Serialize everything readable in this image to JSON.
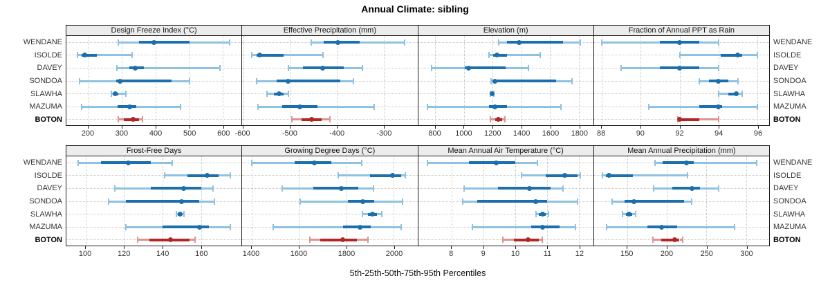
{
  "title": "Annual Climate: sibling",
  "xlabel": "5th-25th-50th-75th-95th Percentiles",
  "stations": [
    "WENDANE",
    "ISOLDE",
    "DAVEY",
    "SONDOA",
    "SLAWHA",
    "MAZUMA",
    "BOTON"
  ],
  "highlight_station": "BOTON",
  "colors": {
    "series_dark": "#1b6fad",
    "series_light": "#8fc1e0",
    "highlight_dark": "#b22623",
    "highlight_light": "#dc9490",
    "strip_bg": "#ececec",
    "panel_border": "#1a1a1a",
    "grid": "#c6c6c6"
  },
  "chart_data": {
    "type": "percentile-whisker-trellis",
    "layout": "2x4",
    "title": "Annual Climate: sibling",
    "xlabel": "5th-25th-50th-75th-95th Percentiles",
    "percentile_labels": [
      "5th",
      "25th",
      "50th",
      "75th",
      "95th"
    ],
    "grid": "dotted",
    "panels": [
      {
        "slug": "design-freeze-index",
        "title": "Design Freeze Index (°C)",
        "ticks": [
          200,
          300,
          400,
          500,
          600
        ],
        "xlim": [
          135,
          655
        ],
        "values": {
          "WENDANE": [
            290,
            350,
            394,
            500,
            620
          ],
          "ISOLDE": [
            168,
            180,
            190,
            225,
            330
          ],
          "DAVEY": [
            285,
            322,
            340,
            365,
            590
          ],
          "SONDOA": [
            175,
            282,
            295,
            448,
            500
          ],
          "SLAWHA": [
            268,
            274,
            280,
            288,
            312
          ],
          "MAZUMA": [
            180,
            286,
            322,
            343,
            474
          ],
          "BOTON": [
            290,
            305,
            333,
            350,
            361
          ]
        }
      },
      {
        "slug": "effective-precipitation",
        "title": "Effective Precipitation (mm)",
        "ticks": [
          -600,
          -500,
          -400,
          -300
        ],
        "xlim": [
          -602,
          -228
        ],
        "values": {
          "WENDANE": [
            -455,
            -428,
            -398,
            -352,
            -255
          ],
          "ISOLDE": [
            -582,
            -572,
            -564,
            -514,
            -430
          ],
          "DAVEY": [
            -504,
            -472,
            -430,
            -385,
            -345
          ],
          "SONDOA": [
            -571,
            -528,
            -504,
            -393,
            -365
          ],
          "SLAWHA": [
            -549,
            -535,
            -524,
            -514,
            -504
          ],
          "MAZUMA": [
            -568,
            -516,
            -479,
            -442,
            -320
          ],
          "BOTON": [
            -496,
            -475,
            -454,
            -433,
            -415
          ]
        }
      },
      {
        "slug": "elevation",
        "title": "Elevation (m)",
        "ticks": [
          800,
          1000,
          1200,
          1400,
          1600,
          1800
        ],
        "xlim": [
          680,
          1900
        ],
        "values": {
          "WENDANE": [
            1240,
            1300,
            1385,
            1690,
            1810
          ],
          "ISOLDE": [
            1175,
            1205,
            1230,
            1300,
            1530
          ],
          "DAVEY": [
            775,
            1005,
            1030,
            1290,
            1450
          ],
          "SONDOA": [
            1187,
            1200,
            1215,
            1640,
            1750
          ],
          "SLAWHA": [
            1185,
            1190,
            1196,
            1202,
            1208
          ],
          "MAZUMA": [
            745,
            1175,
            1215,
            1300,
            1673
          ],
          "BOTON": [
            1185,
            1215,
            1240,
            1265,
            1285
          ]
        }
      },
      {
        "slug": "fraction-annual-ppt-as-rain",
        "title": "Fraction of Annual PPT as Rain",
        "ticks": [
          88,
          90,
          92,
          94,
          96
        ],
        "xlim": [
          87.6,
          96.6
        ],
        "values": {
          "WENDANE": [
            88,
            91,
            92,
            93,
            94
          ],
          "ISOLDE": [
            92,
            94.1,
            95,
            95.2,
            96
          ],
          "DAVEY": [
            89,
            91,
            92,
            93,
            94
          ],
          "SONDOA": [
            93,
            93.5,
            94,
            94.5,
            95
          ],
          "SLAWHA": [
            94,
            94.5,
            94.9,
            95,
            95.2
          ],
          "MAZUMA": [
            90.4,
            93,
            94,
            94.2,
            96
          ],
          "BOTON": [
            91.9,
            92,
            92,
            93,
            94
          ]
        }
      },
      {
        "slug": "frost-free-days",
        "title": "Frost-Free Days",
        "ticks": [
          100,
          120,
          140,
          160
        ],
        "xlim": [
          90,
          181
        ],
        "values": {
          "WENDANE": [
            96,
            108,
            122,
            134,
            145
          ],
          "ISOLDE": [
            141,
            153,
            163,
            169,
            175
          ],
          "DAVEY": [
            115,
            134,
            151,
            160,
            166
          ],
          "SONDOA": [
            112,
            121,
            150,
            159,
            167
          ],
          "SLAWHA": [
            147,
            148,
            149,
            150,
            151
          ],
          "MAZUMA": [
            121,
            140,
            159,
            164,
            175
          ],
          "BOTON": [
            127,
            133,
            144,
            154,
            157
          ]
        }
      },
      {
        "slug": "growing-degree-days",
        "title": "Growing Degree Days (°C)",
        "ticks": [
          1400,
          1600,
          1800,
          2000
        ],
        "xlim": [
          1360,
          2100
        ],
        "values": {
          "WENDANE": [
            1400,
            1580,
            1665,
            1735,
            1865
          ],
          "ISOLDE": [
            1765,
            1900,
            1995,
            2030,
            2050
          ],
          "DAVEY": [
            1530,
            1660,
            1780,
            1850,
            1913
          ],
          "SONDOA": [
            1605,
            1805,
            1870,
            1916,
            2038
          ],
          "SLAWHA": [
            1868,
            1890,
            1910,
            1930,
            1950
          ],
          "MAZUMA": [
            1490,
            1787,
            1858,
            1902,
            2030
          ],
          "BOTON": [
            1645,
            1690,
            1785,
            1845,
            1890
          ]
        }
      },
      {
        "slug": "mean-annual-air-temperature",
        "title": "Mean Annual Air Temperature (°C)",
        "ticks": [
          8,
          9,
          10,
          11,
          12
        ],
        "xlim": [
          6.95,
          12.45
        ],
        "values": {
          "WENDANE": [
            7.25,
            8.55,
            9.4,
            10.0,
            10.7
          ],
          "ISOLDE": [
            10.2,
            10.95,
            11.55,
            11.95,
            12.05
          ],
          "DAVEY": [
            8.4,
            9.45,
            10.45,
            11.1,
            11.5
          ],
          "SONDOA": [
            8.35,
            8.8,
            10.65,
            11.0,
            11.95
          ],
          "SLAWHA": [
            10.65,
            10.75,
            10.85,
            10.95,
            11.05
          ],
          "MAZUMA": [
            8.65,
            10.5,
            10.85,
            11.4,
            11.9
          ],
          "BOTON": [
            9.6,
            9.95,
            10.4,
            10.75,
            10.85
          ]
        }
      },
      {
        "slug": "mean-annual-precipitation",
        "title": "Mean Annual Precipitation (mm)",
        "ticks": [
          150,
          200,
          250,
          300
        ],
        "xlim": [
          108,
          329
        ],
        "values": {
          "WENDANE": [
            185,
            195,
            225,
            234,
            313
          ],
          "ISOLDE": [
            119,
            123,
            127,
            157,
            226
          ],
          "DAVEY": [
            183,
            207,
            232,
            242,
            265
          ],
          "SONDOA": [
            131,
            147,
            158,
            222,
            231
          ],
          "SLAWHA": [
            144,
            148,
            152,
            156,
            161
          ],
          "MAZUMA": [
            124,
            175,
            193,
            213,
            285
          ],
          "BOTON": [
            182,
            193,
            210,
            216,
            220
          ]
        }
      }
    ]
  }
}
